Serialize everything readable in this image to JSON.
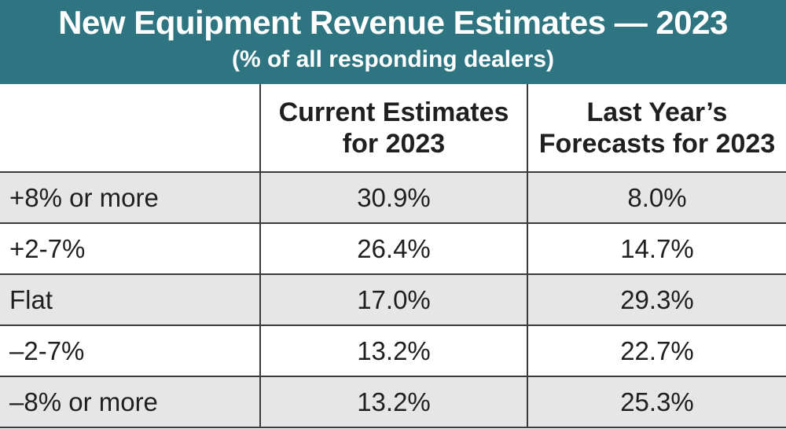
{
  "chart_data": {
    "type": "table",
    "title": "New Equipment Revenue Estimates — 2023",
    "subtitle": "(% of all responding dealers)",
    "columns": [
      "",
      "Current Estimates for 2023",
      "Last Year’s Forecasts for 2023"
    ],
    "column_header_lines": [
      [],
      [
        "Current Estimates",
        "for 2023"
      ],
      [
        "Last Year’s",
        "Forecasts for 2023"
      ]
    ],
    "rows": [
      {
        "label": "+8% or more",
        "current": "30.9%",
        "last_year": "8.0%"
      },
      {
        "label": "+2-7%",
        "current": "26.4%",
        "last_year": "14.7%"
      },
      {
        "label": "Flat",
        "current": "17.0%",
        "last_year": "29.3%"
      },
      {
        "label": "–2-7%",
        "current": "13.2%",
        "last_year": "22.7%"
      },
      {
        "label": "–8% or more",
        "current": "13.2%",
        "last_year": "25.3%"
      }
    ]
  },
  "colors": {
    "header_bg": "#2e7581",
    "shaded_row": "#e6e6e6",
    "border": "#3a3a3a"
  }
}
